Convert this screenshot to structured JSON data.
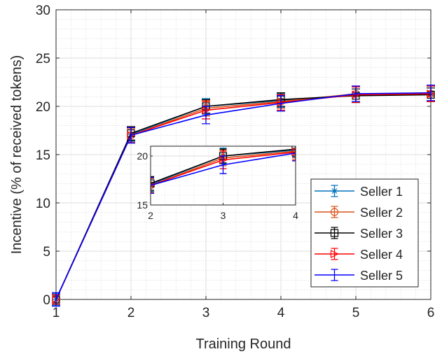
{
  "chart_data": {
    "type": "line",
    "xlabel": "Training Round",
    "ylabel": "Incentive (% of received tokens)",
    "xlim": [
      1,
      6
    ],
    "ylim": [
      0,
      30
    ],
    "xticks": [
      "1",
      "2",
      "3",
      "4",
      "5",
      "6"
    ],
    "yticks": [
      "0",
      "5",
      "10",
      "15",
      "20",
      "25",
      "30"
    ],
    "grid": "on (major and minor)",
    "legend_placement": "bottom-right",
    "x": [
      1,
      2,
      3,
      4,
      5,
      6
    ],
    "series": [
      {
        "name": "Seller 1",
        "color": "#0072BD",
        "marker": "asterisk",
        "values": [
          0.0,
          17.1,
          20.0,
          20.6,
          21.2,
          21.3
        ],
        "err": [
          0.6,
          0.7,
          0.8,
          0.7,
          0.8,
          0.8
        ]
      },
      {
        "name": "Seller 2",
        "color": "#D95319",
        "marker": "circle",
        "values": [
          0.0,
          17.0,
          19.8,
          20.5,
          21.3,
          21.3
        ],
        "err": [
          0.5,
          0.7,
          0.8,
          0.7,
          0.8,
          0.8
        ]
      },
      {
        "name": "Seller 3",
        "color": "#000000",
        "marker": "square",
        "values": [
          0.0,
          17.2,
          20.0,
          20.7,
          21.1,
          21.2
        ],
        "err": [
          0.5,
          0.7,
          0.7,
          0.7,
          0.7,
          0.7
        ]
      },
      {
        "name": "Seller 4",
        "color": "#FF0000",
        "marker": "triangle-right",
        "values": [
          0.0,
          17.0,
          19.6,
          20.4,
          21.2,
          21.3
        ],
        "err": [
          0.5,
          0.8,
          0.9,
          0.8,
          0.8,
          0.8
        ]
      },
      {
        "name": "Seller 5",
        "color": "#0000FF",
        "marker": "none",
        "values": [
          0.0,
          17.0,
          19.1,
          20.3,
          21.3,
          21.4
        ],
        "err": [
          0.7,
          0.8,
          0.9,
          0.8,
          0.8,
          0.8
        ]
      }
    ],
    "inset": {
      "xlim": [
        2,
        4
      ],
      "ylim": [
        15,
        21
      ],
      "xticks": [
        "2",
        "3",
        "4"
      ],
      "yticks": [
        "15",
        "20"
      ]
    }
  }
}
